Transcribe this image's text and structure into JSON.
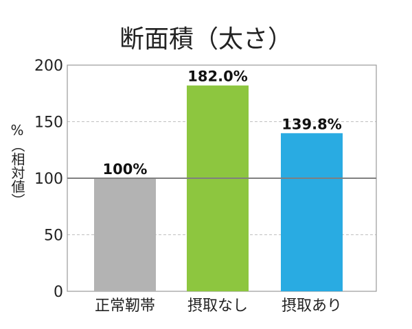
{
  "chart_data": {
    "type": "bar",
    "title": "断面積（太さ）",
    "ylabel": "%（相対値）",
    "categories": [
      "正常靭帯",
      "摂取なし",
      "摂取あり"
    ],
    "values": [
      100,
      182.0,
      139.8
    ],
    "value_labels": [
      "100%",
      "182.0%",
      "139.8%"
    ],
    "bar_colors": [
      "#b3b3b3",
      "#8dc63f",
      "#29abe2"
    ],
    "ylim": [
      0,
      200
    ],
    "yticks": [
      0,
      50,
      100,
      150,
      200
    ],
    "grid": true,
    "reference_line": 100
  }
}
